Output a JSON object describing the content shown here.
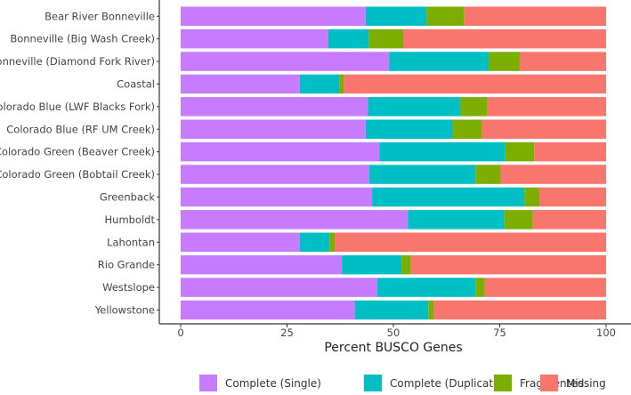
{
  "chart_data": {
    "type": "bar",
    "orientation": "horizontal",
    "stacked": true,
    "title": "",
    "xlabel": "Percent BUSCO Genes",
    "ylabel": "",
    "xlim": [
      0,
      100
    ],
    "xticks": [
      "0",
      "25",
      "50",
      "75",
      "100"
    ],
    "categories": [
      "Bear River Bonneville",
      "Bonneville (Big Wash Creek)",
      "Bonneville (Diamond Fork River)",
      "Coastal",
      "Colorado Blue (LWF Blacks Fork)",
      "Colorado Blue (RF UM Creek)",
      "Colorado Green (Beaver Creek)",
      "Colorado Green (Bobtail Creek)",
      "Greenback",
      "Humboldt",
      "Lahontan",
      "Rio Grande",
      "Westslope",
      "Yellowstone"
    ],
    "series": [
      {
        "name": "Complete (Single)",
        "color": "#C77CFF",
        "values": [
          43.5,
          34.7,
          49.0,
          28.0,
          44.0,
          43.5,
          46.7,
          44.3,
          45.0,
          53.4,
          28.0,
          37.9,
          46.2,
          41.0
        ]
      },
      {
        "name": "Complete (Duplicate)",
        "color": "#00BFC4",
        "values": [
          14.3,
          9.5,
          23.4,
          9.3,
          21.7,
          20.4,
          29.6,
          25.0,
          35.8,
          22.7,
          7.0,
          14.0,
          23.1,
          17.2
        ]
      },
      {
        "name": "Fragmented",
        "color": "#7CAE00",
        "values": [
          8.8,
          8.1,
          7.3,
          1.0,
          6.4,
          6.9,
          6.8,
          5.9,
          3.5,
          6.7,
          1.2,
          2.2,
          2.2,
          1.3
        ]
      },
      {
        "name": "Missing",
        "color": "#F8766D",
        "values": [
          33.4,
          47.7,
          20.3,
          61.7,
          27.9,
          29.2,
          16.9,
          24.8,
          15.7,
          17.2,
          63.8,
          45.9,
          28.5,
          40.5
        ]
      }
    ],
    "legend_position": "bottom"
  }
}
